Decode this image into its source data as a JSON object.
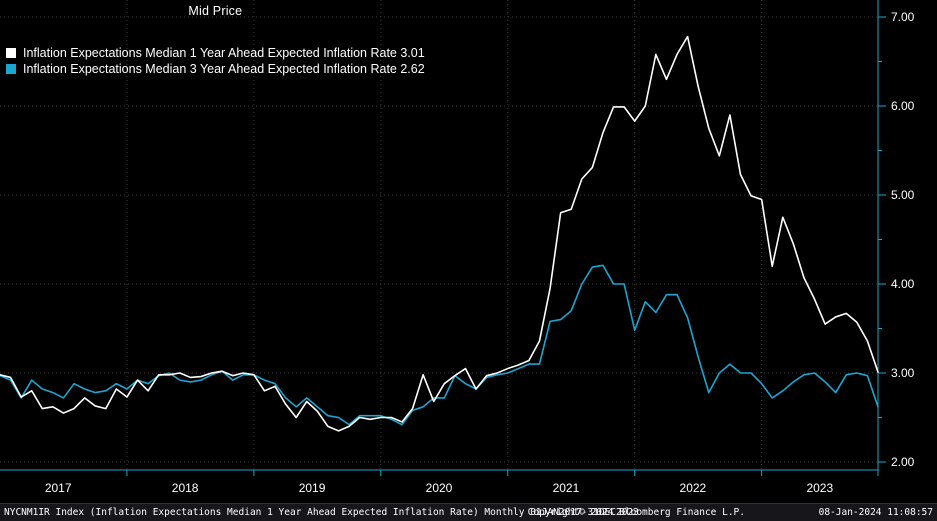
{
  "legend": {
    "title": "Mid Price",
    "items": [
      {
        "label": "Inflation Expectations Median 1 Year Ahead Expected Inflation Rate 3.01"
      },
      {
        "label": "Inflation Expectations Median 3 Year Ahead Expected Inflation Rate 2.62"
      }
    ]
  },
  "status_bar": {
    "left": "NYCNM1IR Index (Inflation Expectations Median 1 Year Ahead Expected Inflation Rate)  Monthly 01JAN2017-31DEC2023",
    "copyright": "Copyright© 2024 Bloomberg Finance L.P.",
    "datetime": "08-Jan-2024 11:08:57"
  },
  "colors": {
    "background": "#000000",
    "series_1yr": "#ffffff",
    "series_3yr": "#1ba6d2",
    "axis": "#17a7cd",
    "grid": "#3e3e3e",
    "text": "#ffffff"
  },
  "chart_data": {
    "type": "line",
    "title": "Mid Price",
    "x_start": "2017-01",
    "x_end": "2023-12",
    "frequency": "monthly",
    "ylim": [
      2.0,
      7.0
    ],
    "y_ticks": [
      2.0,
      3.0,
      4.0,
      5.0,
      6.0,
      7.0
    ],
    "x_year_labels": [
      "2017",
      "2018",
      "2019",
      "2020",
      "2021",
      "2022",
      "2023"
    ],
    "grid": "dotted",
    "legend_position": "top-left",
    "series": [
      {
        "name": "Inflation Expectations Median 1 Year Ahead Expected Inflation Rate",
        "last_value": 3.01,
        "color": "#ffffff",
        "values": [
          2.98,
          2.95,
          2.73,
          2.8,
          2.6,
          2.62,
          2.55,
          2.6,
          2.72,
          2.63,
          2.6,
          2.82,
          2.73,
          2.92,
          2.8,
          2.98,
          2.98,
          3.0,
          2.95,
          2.96,
          3.0,
          3.02,
          2.97,
          3.0,
          2.98,
          2.8,
          2.85,
          2.65,
          2.5,
          2.68,
          2.57,
          2.4,
          2.35,
          2.4,
          2.5,
          2.48,
          2.5,
          2.5,
          2.45,
          2.6,
          2.98,
          2.68,
          2.88,
          2.97,
          3.05,
          2.82,
          2.97,
          3.0,
          3.05,
          3.09,
          3.14,
          3.36,
          3.95,
          4.8,
          4.84,
          5.18,
          5.31,
          5.7,
          5.99,
          5.99,
          5.83,
          6.0,
          6.58,
          6.3,
          6.58,
          6.78,
          6.22,
          5.75,
          5.44,
          5.9,
          5.23,
          4.99,
          4.95,
          4.2,
          4.75,
          4.45,
          4.07,
          3.83,
          3.55,
          3.63,
          3.67,
          3.57,
          3.36,
          3.01
        ]
      },
      {
        "name": "Inflation Expectations Median 3 Year Ahead Expected Inflation Rate",
        "last_value": 2.62,
        "color": "#1ba6d2",
        "values": [
          2.97,
          2.92,
          2.72,
          2.92,
          2.82,
          2.78,
          2.72,
          2.88,
          2.82,
          2.78,
          2.8,
          2.88,
          2.82,
          2.92,
          2.88,
          2.97,
          3.0,
          2.92,
          2.9,
          2.92,
          2.98,
          3.02,
          2.92,
          2.98,
          2.98,
          2.92,
          2.88,
          2.72,
          2.62,
          2.72,
          2.62,
          2.52,
          2.5,
          2.42,
          2.52,
          2.52,
          2.52,
          2.48,
          2.42,
          2.58,
          2.62,
          2.72,
          2.72,
          2.97,
          2.88,
          2.82,
          2.95,
          2.98,
          3.0,
          3.05,
          3.1,
          3.1,
          3.58,
          3.6,
          3.7,
          4.0,
          4.19,
          4.21,
          4.0,
          4.0,
          3.48,
          3.8,
          3.68,
          3.88,
          3.88,
          3.62,
          3.18,
          2.78,
          3.0,
          3.1,
          3.0,
          3.0,
          2.88,
          2.72,
          2.8,
          2.9,
          2.98,
          3.0,
          2.9,
          2.78,
          2.98,
          3.0,
          2.97,
          2.62
        ]
      }
    ]
  }
}
